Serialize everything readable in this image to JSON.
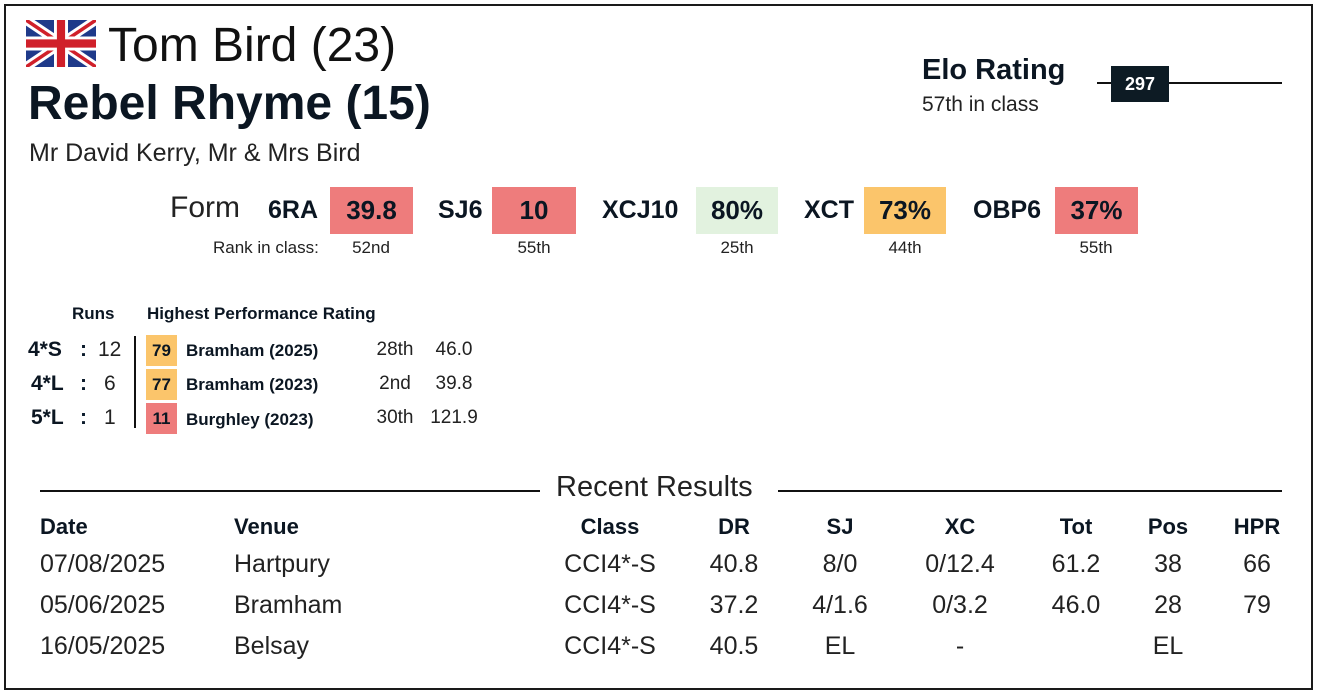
{
  "header": {
    "rider": "Tom Bird (23)",
    "horse": "Rebel Rhyme (15)",
    "owners": "Mr David Kerry, Mr & Mrs Bird",
    "flag_icon": "uk-flag-icon"
  },
  "elo": {
    "title": "Elo Rating",
    "rank": "57th in class",
    "value": "297"
  },
  "form": {
    "label": "Form",
    "rank_label": "Rank in class:",
    "metrics": [
      {
        "code": "6RA",
        "value": "39.8",
        "rank": "52nd",
        "color": "#ee7c7c"
      },
      {
        "code": "SJ6",
        "value": "10",
        "rank": "55th",
        "color": "#ee7c7c"
      },
      {
        "code": "XCJ10",
        "value": "80%",
        "rank": "25th",
        "color": "#e2f2df"
      },
      {
        "code": "XCT",
        "value": "73%",
        "rank": "44th",
        "color": "#fbc56b"
      },
      {
        "code": "OBP6",
        "value": "37%",
        "rank": "55th",
        "color": "#ee7c7c"
      }
    ]
  },
  "levels": {
    "runs_header": "Runs",
    "hpr_header": "Highest Performance Rating",
    "rows": [
      {
        "level": "4*S",
        "colon": ":",
        "runs": "12",
        "hpr": "79",
        "event": "Bramham  (2025)",
        "place": "28th",
        "score": "46.0",
        "color": "#fbc56b"
      },
      {
        "level": "4*L",
        "colon": ":",
        "runs": "6",
        "hpr": "77",
        "event": "Bramham  (2023)",
        "place": "2nd",
        "score": "39.8",
        "color": "#fbc56b"
      },
      {
        "level": "5*L",
        "colon": ":",
        "runs": "1",
        "hpr": "11",
        "event": "Burghley  (2023)",
        "place": "30th",
        "score": "121.9",
        "color": "#ee7c7c"
      }
    ]
  },
  "recent": {
    "title": "Recent Results",
    "headers": {
      "date": "Date",
      "venue": "Venue",
      "class": "Class",
      "dr": "DR",
      "sj": "SJ",
      "xc": "XC",
      "tot": "Tot",
      "pos": "Pos",
      "hpr": "HPR"
    },
    "rows": [
      {
        "date": "07/08/2025",
        "venue": "Hartpury",
        "class": "CCI4*-S",
        "dr": "40.8",
        "sj": "8/0",
        "xc": "0/12.4",
        "tot": "61.2",
        "pos": "38",
        "hpr": "66"
      },
      {
        "date": "05/06/2025",
        "venue": "Bramham",
        "class": "CCI4*-S",
        "dr": "37.2",
        "sj": "4/1.6",
        "xc": "0/3.2",
        "tot": "46.0",
        "pos": "28",
        "hpr": "79"
      },
      {
        "date": "16/05/2025",
        "venue": "Belsay",
        "class": "CCI4*-S",
        "dr": "40.5",
        "sj": "EL",
        "xc": "-",
        "tot": "",
        "pos": "EL",
        "hpr": ""
      }
    ]
  }
}
